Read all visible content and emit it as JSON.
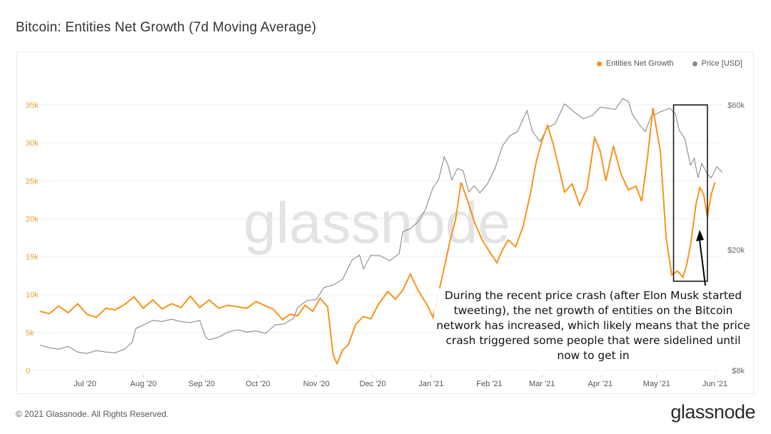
{
  "title": "Bitcoin: Entities Net Growth (7d Moving Average)",
  "legend": {
    "entities": "Entities Net Growth",
    "price": "Price [USD]"
  },
  "watermark": "glassnode",
  "footer": {
    "copyright": "© 2021 Glassnode. All Rights Reserved.",
    "brand": "glassnode"
  },
  "annotation": "During the recent price crash (after Elon Musk started tweeting), the net growth of entities on the Bitcoin network has increased, which likely means that the price crash triggered some people that were sidelined until now to get in",
  "colors": {
    "entities": "#F7931A",
    "price": "#8a8a8a",
    "left_axis_text": "#E8A33A",
    "grid": "#eeeeee"
  },
  "chart_data": {
    "type": "line",
    "x_axis": {
      "type": "date",
      "ticks": [
        "Jul '20",
        "Aug '20",
        "Sep '20",
        "Oct '20",
        "Nov '20",
        "Dec '20",
        "Jan '21",
        "Feb '21",
        "Mar '21",
        "Apr '21",
        "May '21",
        "Jun '21"
      ],
      "range": [
        "2020-06-07",
        "2021-06-05"
      ]
    },
    "y_left": {
      "ticks": [
        "0",
        "5k",
        "10k",
        "15k",
        "20k",
        "25k",
        "30k",
        "35k"
      ],
      "range": [
        0,
        35000
      ]
    },
    "y_right": {
      "scale": "log",
      "ticks": [
        "$8k",
        "$20k",
        "$60k"
      ],
      "range": [
        8000,
        60000
      ]
    },
    "grid": true,
    "legend_position": "top-right",
    "highlight_box": {
      "from": "2021-05-10",
      "to": "2021-05-28"
    },
    "series": [
      {
        "name": "Entities Net Growth",
        "axis": "left",
        "points": [
          [
            "2020-06-07",
            7800
          ],
          [
            "2020-06-12",
            7500
          ],
          [
            "2020-06-17",
            8500
          ],
          [
            "2020-06-22",
            7600
          ],
          [
            "2020-06-27",
            8800
          ],
          [
            "2020-07-02",
            7400
          ],
          [
            "2020-07-07",
            7000
          ],
          [
            "2020-07-12",
            8200
          ],
          [
            "2020-07-17",
            8000
          ],
          [
            "2020-07-22",
            8700
          ],
          [
            "2020-07-27",
            9700
          ],
          [
            "2020-08-01",
            8200
          ],
          [
            "2020-08-06",
            9300
          ],
          [
            "2020-08-11",
            8100
          ],
          [
            "2020-08-16",
            8800
          ],
          [
            "2020-08-21",
            8300
          ],
          [
            "2020-08-26",
            9800
          ],
          [
            "2020-08-31",
            8300
          ],
          [
            "2020-09-05",
            9300
          ],
          [
            "2020-09-10",
            8200
          ],
          [
            "2020-09-15",
            8600
          ],
          [
            "2020-09-20",
            8400
          ],
          [
            "2020-09-25",
            8200
          ],
          [
            "2020-09-30",
            9100
          ],
          [
            "2020-10-05",
            8500
          ],
          [
            "2020-10-09",
            8100
          ],
          [
            "2020-10-14",
            6700
          ],
          [
            "2020-10-18",
            7400
          ],
          [
            "2020-10-22",
            7200
          ],
          [
            "2020-10-26",
            8600
          ],
          [
            "2020-10-30",
            7800
          ],
          [
            "2020-11-03",
            9500
          ],
          [
            "2020-11-07",
            8400
          ],
          [
            "2020-11-10",
            2000
          ],
          [
            "2020-11-12",
            900
          ],
          [
            "2020-11-15",
            2700
          ],
          [
            "2020-11-18",
            3400
          ],
          [
            "2020-11-22",
            6100
          ],
          [
            "2020-11-26",
            7100
          ],
          [
            "2020-11-30",
            6800
          ],
          [
            "2020-12-04",
            8700
          ],
          [
            "2020-12-09",
            10400
          ],
          [
            "2020-12-13",
            9400
          ],
          [
            "2020-12-17",
            10600
          ],
          [
            "2020-12-21",
            12700
          ],
          [
            "2020-12-25",
            10600
          ],
          [
            "2020-12-30",
            8600
          ],
          [
            "2021-01-02",
            7000
          ],
          [
            "2021-01-05",
            10200
          ],
          [
            "2021-01-08",
            13500
          ],
          [
            "2021-01-11",
            17000
          ],
          [
            "2021-01-14",
            19800
          ],
          [
            "2021-01-17",
            24800
          ],
          [
            "2021-01-20",
            22700
          ],
          [
            "2021-01-24",
            19600
          ],
          [
            "2021-01-28",
            17300
          ],
          [
            "2021-02-01",
            15700
          ],
          [
            "2021-02-05",
            14200
          ],
          [
            "2021-02-08",
            15900
          ],
          [
            "2021-02-11",
            17200
          ],
          [
            "2021-02-15",
            16300
          ],
          [
            "2021-02-19",
            19000
          ],
          [
            "2021-02-23",
            23500
          ],
          [
            "2021-02-26",
            27600
          ],
          [
            "2021-03-01",
            30300
          ],
          [
            "2021-03-04",
            32300
          ],
          [
            "2021-03-07",
            29800
          ],
          [
            "2021-03-10",
            26700
          ],
          [
            "2021-03-13",
            23500
          ],
          [
            "2021-03-17",
            24600
          ],
          [
            "2021-03-21",
            21800
          ],
          [
            "2021-03-25",
            24000
          ],
          [
            "2021-03-29",
            30700
          ],
          [
            "2021-04-01",
            28900
          ],
          [
            "2021-04-04",
            25000
          ],
          [
            "2021-04-08",
            29600
          ],
          [
            "2021-04-12",
            25900
          ],
          [
            "2021-04-16",
            23800
          ],
          [
            "2021-04-20",
            24300
          ],
          [
            "2021-04-23",
            22300
          ],
          [
            "2021-04-26",
            27800
          ],
          [
            "2021-04-29",
            34600
          ],
          [
            "2021-05-03",
            28800
          ],
          [
            "2021-05-06",
            17600
          ],
          [
            "2021-05-09",
            12600
          ],
          [
            "2021-05-12",
            13100
          ],
          [
            "2021-05-15",
            12300
          ],
          [
            "2021-05-17",
            14000
          ],
          [
            "2021-05-19",
            16500
          ],
          [
            "2021-05-22",
            22000
          ],
          [
            "2021-05-24",
            24100
          ],
          [
            "2021-05-26",
            23200
          ],
          [
            "2021-05-28",
            20200
          ],
          [
            "2021-05-30",
            23200
          ],
          [
            "2021-06-01",
            24800
          ]
        ]
      },
      {
        "name": "Price [USD]",
        "axis": "right",
        "points": [
          [
            "2020-06-07",
            9700
          ],
          [
            "2020-06-12",
            9500
          ],
          [
            "2020-06-17",
            9400
          ],
          [
            "2020-06-22",
            9600
          ],
          [
            "2020-06-27",
            9200
          ],
          [
            "2020-07-02",
            9100
          ],
          [
            "2020-07-07",
            9300
          ],
          [
            "2020-07-12",
            9200
          ],
          [
            "2020-07-17",
            9150
          ],
          [
            "2020-07-22",
            9400
          ],
          [
            "2020-07-26",
            9900
          ],
          [
            "2020-07-28",
            11000
          ],
          [
            "2020-08-01",
            11300
          ],
          [
            "2020-08-06",
            11700
          ],
          [
            "2020-08-11",
            11600
          ],
          [
            "2020-08-16",
            11800
          ],
          [
            "2020-08-21",
            11600
          ],
          [
            "2020-08-26",
            11500
          ],
          [
            "2020-08-31",
            11700
          ],
          [
            "2020-09-03",
            10300
          ],
          [
            "2020-09-05",
            10100
          ],
          [
            "2020-09-10",
            10300
          ],
          [
            "2020-09-15",
            10700
          ],
          [
            "2020-09-20",
            10900
          ],
          [
            "2020-09-25",
            10700
          ],
          [
            "2020-09-30",
            10800
          ],
          [
            "2020-10-05",
            10600
          ],
          [
            "2020-10-10",
            11300
          ],
          [
            "2020-10-15",
            11400
          ],
          [
            "2020-10-20",
            11900
          ],
          [
            "2020-10-22",
            12900
          ],
          [
            "2020-10-27",
            13600
          ],
          [
            "2020-11-01",
            13700
          ],
          [
            "2020-11-05",
            15000
          ],
          [
            "2020-11-10",
            15300
          ],
          [
            "2020-11-15",
            16000
          ],
          [
            "2020-11-20",
            18500
          ],
          [
            "2020-11-24",
            19200
          ],
          [
            "2020-11-26",
            17300
          ],
          [
            "2020-11-30",
            19200
          ],
          [
            "2020-12-05",
            19100
          ],
          [
            "2020-12-10",
            18400
          ],
          [
            "2020-12-15",
            19400
          ],
          [
            "2020-12-17",
            22900
          ],
          [
            "2020-12-21",
            23500
          ],
          [
            "2020-12-25",
            24700
          ],
          [
            "2020-12-29",
            27100
          ],
          [
            "2021-01-02",
            32000
          ],
          [
            "2021-01-05",
            34000
          ],
          [
            "2021-01-08",
            40500
          ],
          [
            "2021-01-10",
            38000
          ],
          [
            "2021-01-12",
            34000
          ],
          [
            "2021-01-15",
            37000
          ],
          [
            "2021-01-18",
            36500
          ],
          [
            "2021-01-21",
            31000
          ],
          [
            "2021-01-24",
            32500
          ],
          [
            "2021-01-27",
            30800
          ],
          [
            "2021-01-31",
            33000
          ],
          [
            "2021-02-04",
            37000
          ],
          [
            "2021-02-08",
            44000
          ],
          [
            "2021-02-12",
            47500
          ],
          [
            "2021-02-16",
            49000
          ],
          [
            "2021-02-21",
            57500
          ],
          [
            "2021-02-24",
            49000
          ],
          [
            "2021-02-28",
            45500
          ],
          [
            "2021-03-04",
            50500
          ],
          [
            "2021-03-08",
            52000
          ],
          [
            "2021-03-13",
            60500
          ],
          [
            "2021-03-18",
            57000
          ],
          [
            "2021-03-23",
            54000
          ],
          [
            "2021-03-28",
            55500
          ],
          [
            "2021-04-01",
            59000
          ],
          [
            "2021-04-05",
            58500
          ],
          [
            "2021-04-09",
            58000
          ],
          [
            "2021-04-13",
            63000
          ],
          [
            "2021-04-16",
            61500
          ],
          [
            "2021-04-18",
            56000
          ],
          [
            "2021-04-22",
            51500
          ],
          [
            "2021-04-25",
            49000
          ],
          [
            "2021-04-28",
            55000
          ],
          [
            "2021-05-03",
            57000
          ],
          [
            "2021-05-08",
            58500
          ],
          [
            "2021-05-11",
            56000
          ],
          [
            "2021-05-13",
            49500
          ],
          [
            "2021-05-16",
            46500
          ],
          [
            "2021-05-19",
            38000
          ],
          [
            "2021-05-21",
            40000
          ],
          [
            "2021-05-23",
            34500
          ],
          [
            "2021-05-25",
            38500
          ],
          [
            "2021-05-28",
            35500
          ],
          [
            "2021-05-30",
            34500
          ],
          [
            "2021-06-02",
            37500
          ],
          [
            "2021-06-05",
            36000
          ]
        ]
      }
    ]
  }
}
